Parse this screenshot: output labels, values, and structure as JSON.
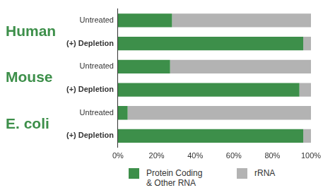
{
  "chart_data": {
    "type": "bar",
    "orientation": "horizontal",
    "stacked": true,
    "grid": false,
    "legend": "bottom",
    "groups": [
      {
        "name": "Human",
        "categories": [
          "Untreated",
          "(+) Depletion"
        ]
      },
      {
        "name": "Mouse",
        "categories": [
          "Untreated",
          "(+) Depletion"
        ]
      },
      {
        "name": "E. coli",
        "categories": [
          "Untreated",
          "(+) Depletion"
        ]
      }
    ],
    "series": [
      {
        "name": "Protein Coding & Other RNA",
        "color": "#3d8f4a",
        "values": [
          28,
          96,
          27,
          94,
          5,
          96
        ]
      },
      {
        "name": "rRNA",
        "color": "#b3b3b3",
        "values": [
          72,
          4,
          73,
          6,
          95,
          4
        ]
      }
    ],
    "xlim": [
      0,
      100
    ],
    "xticks": [
      {
        "value": 0,
        "label": "0%"
      },
      {
        "value": 20,
        "label": "20%"
      },
      {
        "value": 40,
        "label": "40%"
      },
      {
        "value": 60,
        "label": "60%"
      },
      {
        "value": 80,
        "label": "80%"
      },
      {
        "value": 100,
        "label": "100%"
      }
    ]
  }
}
